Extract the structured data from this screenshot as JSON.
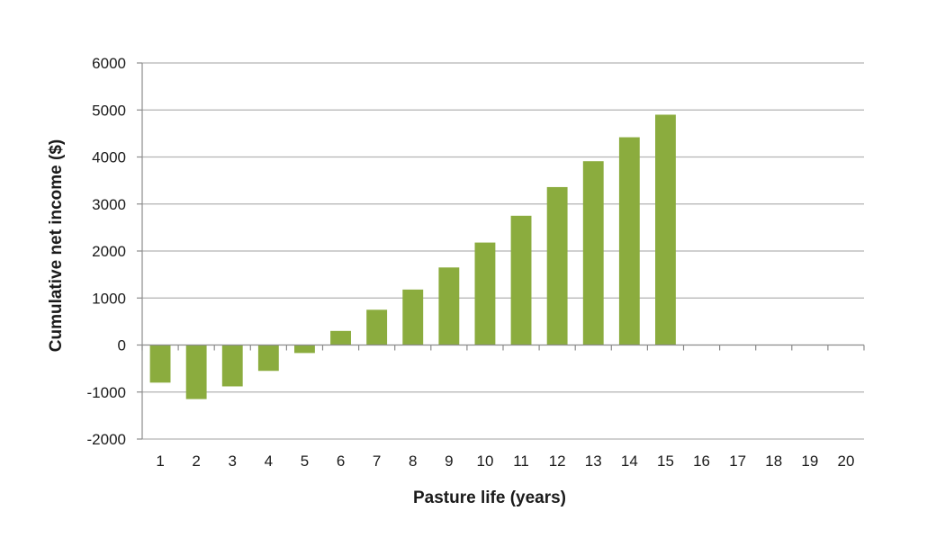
{
  "chart_data": {
    "type": "bar",
    "categories": [
      "1",
      "2",
      "3",
      "4",
      "5",
      "6",
      "7",
      "8",
      "9",
      "10",
      "11",
      "12",
      "13",
      "14",
      "15",
      "16",
      "17",
      "18",
      "19",
      "20"
    ],
    "values": [
      -800,
      -1150,
      -880,
      -550,
      -170,
      300,
      750,
      1180,
      1650,
      2180,
      2750,
      3360,
      3910,
      4420,
      4900,
      0,
      0,
      0,
      0,
      0
    ],
    "xlabel": "Pasture life (years)",
    "ylabel": "Cumulative net income ($)",
    "ylim": [
      -2000,
      6000
    ],
    "yticks": [
      -2000,
      -1000,
      0,
      1000,
      2000,
      3000,
      4000,
      5000,
      6000
    ],
    "grid": true,
    "legend": "none",
    "bar_color": "#8bac3e"
  }
}
